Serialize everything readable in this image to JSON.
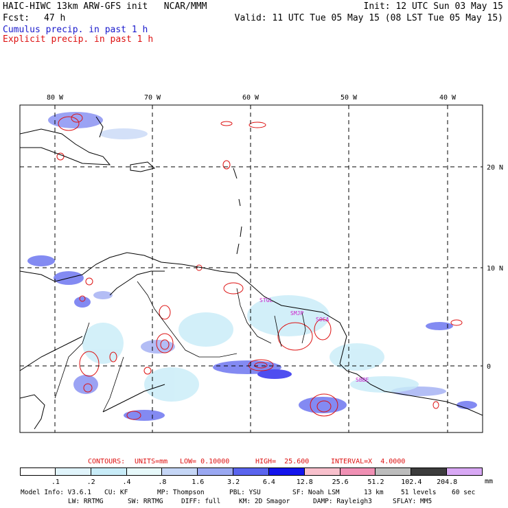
{
  "header": {
    "model_line": "HAIC-HIWC 13km ARW-GFS init   NCAR/MMM",
    "init": "Init: 12 UTC Sun 03 May 15",
    "fcst_label": "Fcst:",
    "fcst_value": "47 h",
    "valid": "Valid: 11 UTC Tue 05 May 15 (08 LST Tue 05 May 15)",
    "cumulus": "Cumulus precip. in past 1 h",
    "explicit": "Explicit precip. in past 1 h"
  },
  "map": {
    "lon_labels": [
      "80 W",
      "70 W",
      "60 W",
      "50 W",
      "40 W"
    ],
    "lat_labels": [
      "20 N",
      "10 N",
      "0"
    ],
    "stations": [
      "STGL",
      "SMJP",
      "SOCA",
      "SBBE"
    ]
  },
  "contours": {
    "label": "CONTOURS:",
    "units": "UNITS=mm",
    "low": "LOW= 0.10000",
    "high": "HIGH=  25.600",
    "interval": "INTERVAL=X  4.0000"
  },
  "colorbar": {
    "labels": [
      ".1",
      ".2",
      ".4",
      ".8",
      "1.6",
      "3.2",
      "6.4",
      "12.8",
      "25.6",
      "51.2",
      "102.4",
      "204.8"
    ],
    "units": "mm",
    "colors": [
      "#ffffff",
      "#e0f4fb",
      "#c8ecf8",
      "#e6f8fa",
      "#c5d6f6",
      "#9aa8f2",
      "#5a64ee",
      "#1414ec",
      "#f8c0cc",
      "#f090b4",
      "#bcbcbc",
      "#3c3c3c",
      "#d8a8f4"
    ]
  },
  "footer": {
    "line1": [
      "Model Info: V3.6.1",
      "CU: KF",
      "MP: Thompson",
      "PBL: YSU",
      "SF: Noah LSM",
      "13 km",
      "51 levels",
      "60 sec"
    ],
    "line2": [
      "LW: RRTMG",
      "SW: RRTMG",
      "DIFF: full",
      "KM: 2D Smagor",
      "DAMP: Rayleigh3",
      "SFLAY: MM5"
    ]
  }
}
